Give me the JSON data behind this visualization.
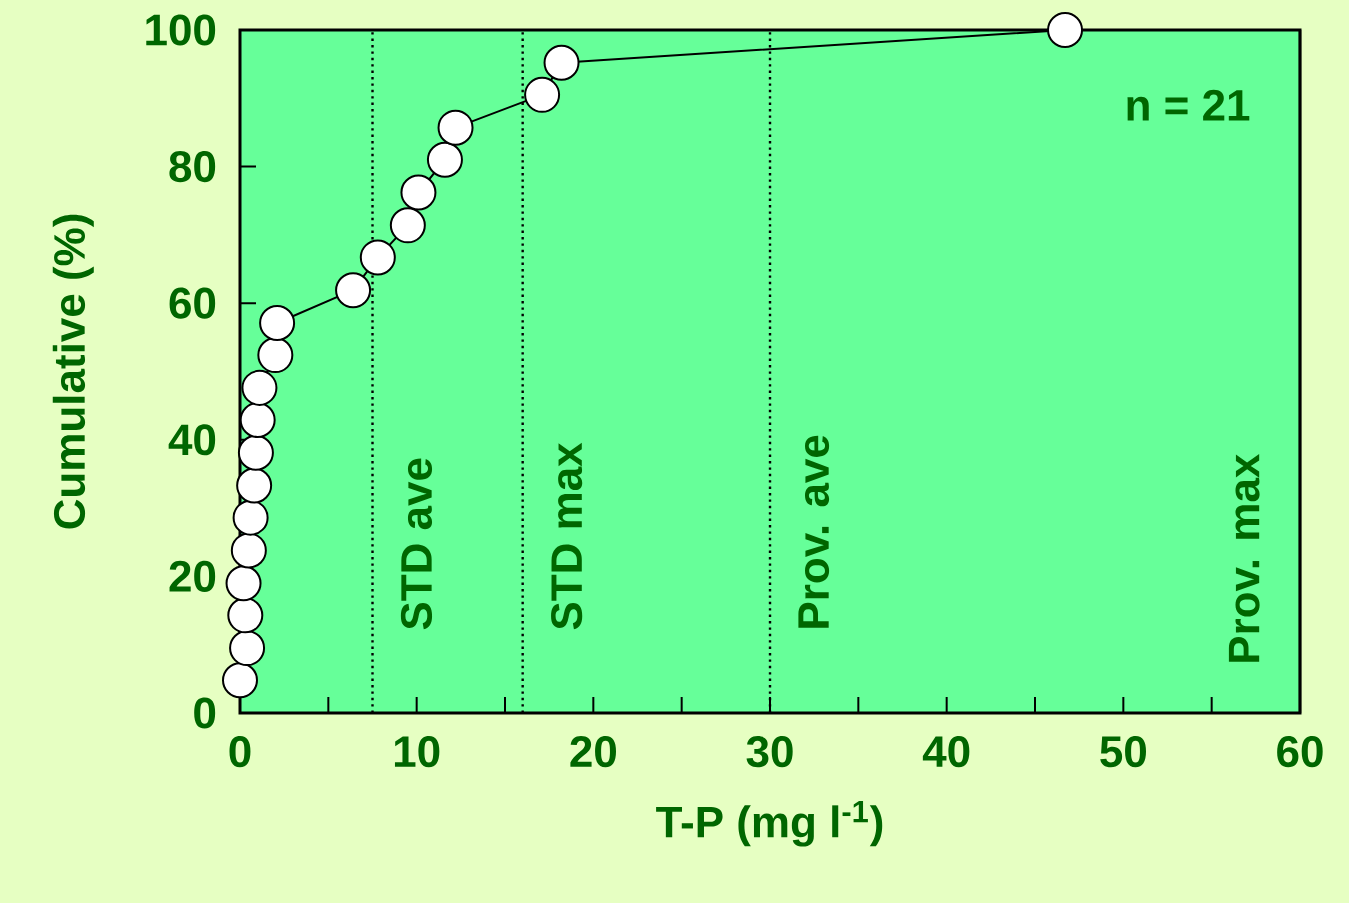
{
  "chart_data": {
    "type": "line",
    "xlabel": "T-P (mg l$^{-1}$)",
    "ylabel": "Cumulative (%)",
    "x": [
      0,
      0.4,
      0.3,
      0.2,
      0.5,
      0.6,
      0.8,
      0.9,
      1.0,
      1.1,
      2.0,
      2.1,
      6.4,
      7.8,
      9.5,
      10.1,
      11.6,
      12.2,
      17.1,
      18.2,
      46.7
    ],
    "series": [
      {
        "color": "#000000",
        "values": [
          4.8,
          9.5,
          14.3,
          19.0,
          23.8,
          28.6,
          33.3,
          38.1,
          42.9,
          47.6,
          52.4,
          57.1,
          61.9,
          66.7,
          71.4,
          76.2,
          81.0,
          85.7,
          90.5,
          95.2,
          100
        ]
      }
    ],
    "marker": "circle",
    "line_style": "solid",
    "grid": false,
    "xlim": [
      0,
      60
    ],
    "ylim": [
      0,
      100
    ],
    "xticks": [
      0,
      {
        "value": 5,
        "label": null
      },
      10,
      {
        "value": 15,
        "label": null
      },
      20,
      {
        "value": 25,
        "label": null
      },
      30,
      {
        "value": 35,
        "label": null
      },
      40,
      {
        "value": 45,
        "label": null
      },
      50,
      {
        "value": 55,
        "label": null
      },
      60
    ],
    "yticks": [
      0,
      20,
      40,
      60,
      80,
      100
    ],
    "ref_lines": [
      {
        "axis": "x",
        "value": 7.5,
        "label": "STD ave",
        "line_style": "dotted"
      },
      {
        "axis": "x",
        "value": 16,
        "label": "STD max",
        "line_style": "dotted"
      },
      {
        "axis": "x",
        "value": 30,
        "label": "Prov. ave",
        "line_style": "dotted"
      },
      {
        "axis": "x",
        "value": 60,
        "label": "Prov. max"
      }
    ],
    "annotations": [
      "n = 21"
    ]
  }
}
